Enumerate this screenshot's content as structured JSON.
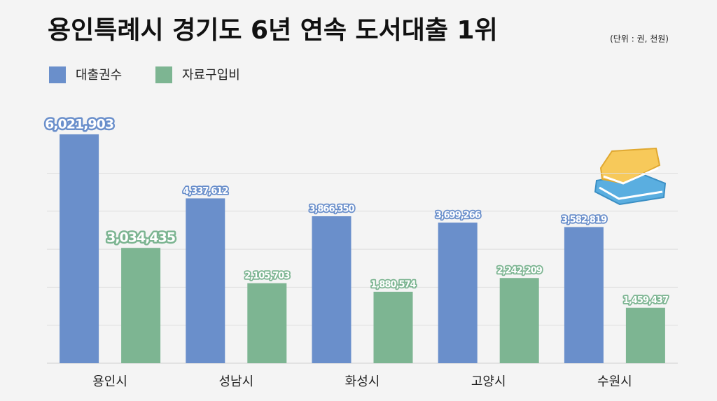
{
  "chart_data": {
    "type": "bar",
    "title": "용인특례시 경기도 6년 연속 도서대출 1위",
    "subtitle": "(단위 : 권, 천원)",
    "categories": [
      "용인시",
      "성남시",
      "화성시",
      "고양시",
      "수원시"
    ],
    "series": [
      {
        "name": "대출권수",
        "color": "#6a8fcb",
        "values": [
          6021903,
          4337612,
          3866350,
          3699266,
          3582819
        ],
        "value_labels": [
          "6,021,903",
          "4,337,612",
          "3,866,350",
          "3,699,266",
          "3,582,819"
        ]
      },
      {
        "name": "자료구입비",
        "color": "#7db592",
        "values": [
          3034435,
          2105703,
          1880574,
          2242209,
          1459437
        ],
        "value_labels": [
          "3,034,435",
          "2,105,703",
          "1,880,574",
          "2,242,209",
          "1,459,437"
        ]
      }
    ],
    "ylim": [
      0,
      6500000
    ],
    "yticks": [
      0,
      1000000,
      2000000,
      3000000,
      4000000,
      5000000
    ],
    "grid": true,
    "legend": "top-left"
  }
}
